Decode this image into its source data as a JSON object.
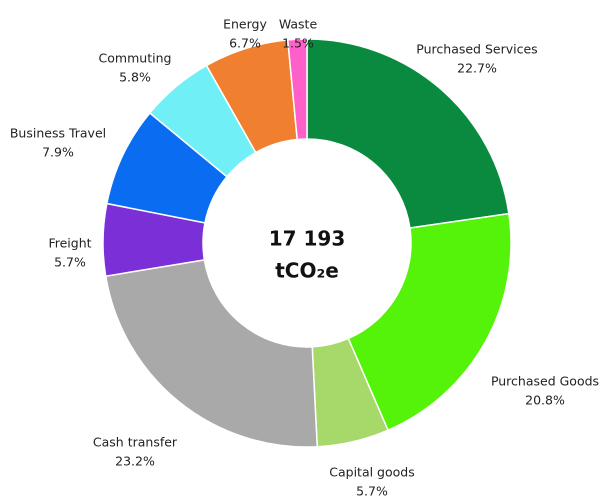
{
  "chart_data": {
    "type": "donut",
    "center_label": [
      "17 193",
      "tCO₂e"
    ],
    "categories": [
      "Purchased Services",
      "Purchased Goods",
      "Capital goods",
      "Cash transfer",
      "Freight",
      "Business Travel",
      "Commuting",
      "Energy",
      "Waste"
    ],
    "values": [
      22.7,
      20.8,
      5.7,
      23.2,
      5.7,
      7.9,
      5.8,
      6.7,
      1.5
    ],
    "value_labels": [
      "22.7%",
      "20.8%",
      "5.7%",
      "23.2%",
      "5.7%",
      "7.9%",
      "5.8%",
      "6.7%",
      "1.5%"
    ],
    "colors": [
      "#0a8a3e",
      "#55f20a",
      "#a6d96a",
      "#a9a9a9",
      "#7b2fd6",
      "#0a6cf0",
      "#70f0f6",
      "#f08030",
      "#ff5fc8"
    ]
  }
}
